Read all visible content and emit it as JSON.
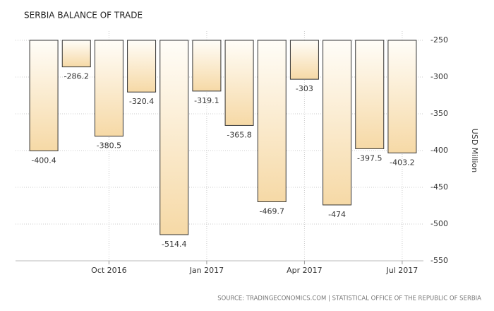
{
  "chart_data": {
    "type": "bar",
    "title": "SERBIA BALANCE OF TRADE",
    "y_label": "USD Million",
    "source": "SOURCE: TRADINGECONOMICS.COM | STATISTICAL OFFICE OF THE REPUBLIC OF SERBIA",
    "categories": [
      null,
      null,
      "Oct 2016",
      null,
      null,
      "Jan 2017",
      null,
      null,
      "Apr 2017",
      null,
      null,
      "Jul 2017"
    ],
    "values": [
      -400.4,
      -286.2,
      -380.5,
      -320.4,
      -514.4,
      -319.1,
      -365.8,
      -469.7,
      -303,
      -474,
      -397.5,
      -403.2
    ],
    "color": "#f6d9a6",
    "ylim": [
      -550,
      -250
    ],
    "yticks": [
      -250,
      -300,
      -350,
      -400,
      -450,
      -500,
      -550
    ],
    "grid": true
  }
}
